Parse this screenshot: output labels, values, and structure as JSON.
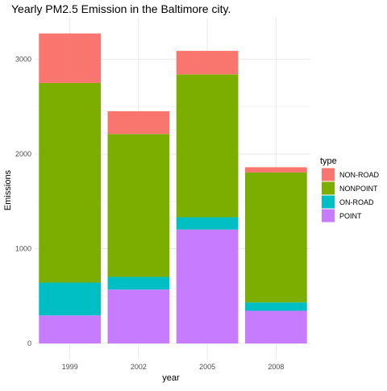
{
  "chart_data": {
    "type": "bar",
    "stacked": true,
    "title": "Yearly PM2.5 Emission in the Baltimore city.",
    "xlabel": "year",
    "ylabel": "Emissions",
    "categories": [
      "1999",
      "2002",
      "2005",
      "2008"
    ],
    "series": [
      {
        "name": "POINT",
        "color": "#C77CFF",
        "values": [
          296,
          569,
          1203,
          345
        ]
      },
      {
        "name": "ON-ROAD",
        "color": "#00BFC4",
        "values": [
          347,
          134,
          130,
          88
        ]
      },
      {
        "name": "NONPOINT",
        "color": "#7CAE00",
        "values": [
          2108,
          1509,
          1509,
          1373
        ]
      },
      {
        "name": "NON-ROAD",
        "color": "#F8766D",
        "values": [
          523,
          241,
          248,
          55
        ]
      }
    ],
    "legend": {
      "title": "type",
      "placement": "right",
      "order": [
        "NON-ROAD",
        "NONPOINT",
        "ON-ROAD",
        "POINT"
      ]
    },
    "yticks": [
      0,
      1000,
      2000,
      3000
    ],
    "ylim": [
      -170,
      3440
    ],
    "grid": true
  }
}
